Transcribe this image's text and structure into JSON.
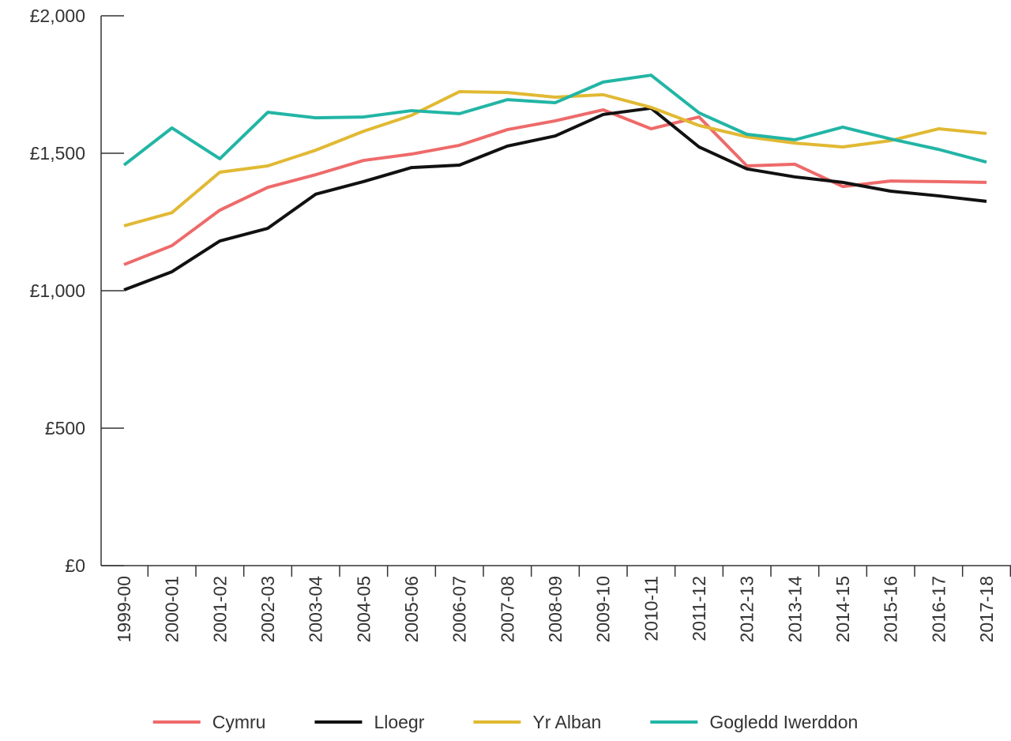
{
  "chart_data": {
    "type": "line",
    "categories": [
      "1999-00",
      "2000-01",
      "2001-02",
      "2002-03",
      "2003-04",
      "2004-05",
      "2005-06",
      "2006-07",
      "2007-08",
      "2008-09",
      "2009-10",
      "2010-11",
      "2011-12",
      "2012-13",
      "2013-14",
      "2014-15",
      "2015-16",
      "2016-17",
      "2017-18"
    ],
    "series": [
      {
        "name": "Cymru",
        "color": "#ee6a6a",
        "values": [
          1095,
          1164,
          1293,
          1376,
          1422,
          1474,
          1497,
          1529,
          1586,
          1618,
          1658,
          1589,
          1632,
          1454,
          1460,
          1379,
          1399,
          1397,
          1394
        ]
      },
      {
        "name": "Lloegr",
        "color": "#111111",
        "values": [
          1003,
          1069,
          1181,
          1227,
          1351,
          1397,
          1448,
          1457,
          1526,
          1563,
          1641,
          1664,
          1523,
          1443,
          1414,
          1394,
          1362,
          1345,
          1325
        ]
      },
      {
        "name": "Yr Alban",
        "color": "#e1b933",
        "values": [
          1236,
          1284,
          1431,
          1454,
          1511,
          1580,
          1638,
          1724,
          1721,
          1704,
          1713,
          1667,
          1601,
          1560,
          1537,
          1523,
          1546,
          1589,
          1572
        ]
      },
      {
        "name": "Gogledd Iwerddon",
        "color": "#22b5a5",
        "values": [
          1457,
          1592,
          1480,
          1649,
          1629,
          1632,
          1655,
          1644,
          1695,
          1684,
          1759,
          1784,
          1647,
          1569,
          1549,
          1595,
          1552,
          1514,
          1468
        ]
      }
    ],
    "ylim": [
      0,
      2000
    ],
    "yticks": [
      {
        "value": 0,
        "label": "£0"
      },
      {
        "value": 500,
        "label": "£500"
      },
      {
        "value": 1000,
        "label": "£1,000"
      },
      {
        "value": 1500,
        "label": "£1,500"
      },
      {
        "value": 2000,
        "label": "£2,000"
      }
    ],
    "grid": false,
    "legend": "bottom"
  }
}
